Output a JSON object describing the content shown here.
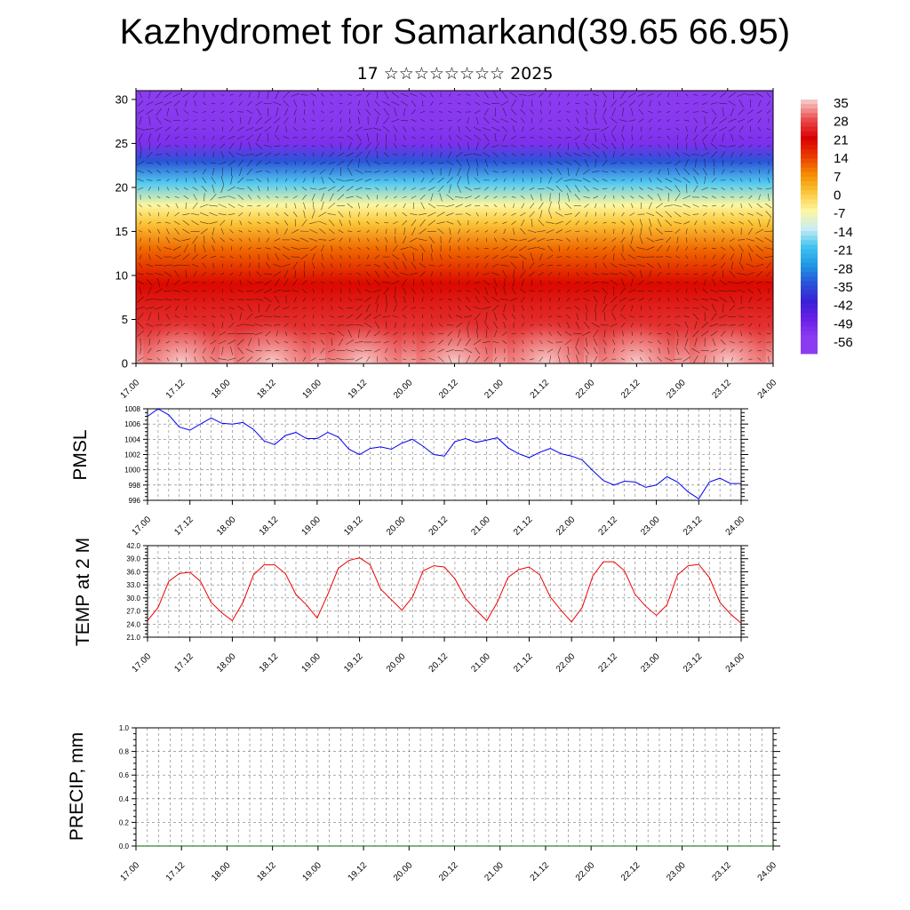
{
  "header": {
    "title": "Kazhydromet for Samarkand(39.65 66.95)",
    "subtitle": "17 ☆☆☆☆☆☆☆☆ 2025"
  },
  "chart_data": [
    {
      "type": "heatmap",
      "title": "Kazhydromet for Samarkand(39.65 66.95)",
      "subtitle": "17 ☆☆☆☆☆☆☆☆ 2025",
      "x_ticks": [
        "17.00",
        "17.12",
        "18.00",
        "18.12",
        "19.00",
        "19.12",
        "20.00",
        "20.12",
        "21.00",
        "21.12",
        "22.00",
        "22.12",
        "23.00",
        "23.12",
        "24.00"
      ],
      "y_ticks": [
        "0",
        "5",
        "10",
        "15",
        "20",
        "25",
        "30"
      ],
      "ylim": [
        0,
        31
      ],
      "colorbar_labels": [
        "35",
        "28",
        "21",
        "14",
        "7",
        "0",
        "-7",
        "-14",
        "-21",
        "-28",
        "-35",
        "-42",
        "-49",
        "-56"
      ],
      "colorbar_colors": [
        "#f6c2c2",
        "#ea4a4a",
        "#d80000",
        "#ea3a00",
        "#f48c00",
        "#fbc73a",
        "#fdf6a0",
        "#c9ecf4",
        "#3fc3ef",
        "#1e98e4",
        "#2a54d8",
        "#3a20d6",
        "#6a20e6",
        "#8c3cf0"
      ],
      "vertical_profile": [
        {
          "height": 0,
          "value": 33
        },
        {
          "height": 4,
          "value": 26
        },
        {
          "height": 9,
          "value": 20
        },
        {
          "height": 13,
          "value": 10
        },
        {
          "height": 16,
          "value": 0
        },
        {
          "height": 18,
          "value": -7
        },
        {
          "height": 20.5,
          "value": -20
        },
        {
          "height": 23,
          "value": -35
        },
        {
          "height": 25,
          "value": -53
        },
        {
          "height": 27,
          "value": -55
        },
        {
          "height": 31,
          "value": -57
        }
      ],
      "overlay": "wind vectors"
    },
    {
      "type": "line",
      "ylabel": "PMSL",
      "ylim": [
        996,
        1008
      ],
      "y_ticks": [
        "996",
        "998",
        "1000",
        "1002",
        "1004",
        "1006",
        "1008"
      ],
      "x_ticks": [
        "17.00",
        "17.12",
        "18.00",
        "18.12",
        "19.00",
        "19.12",
        "20.00",
        "20.12",
        "21.00",
        "21.12",
        "22.00",
        "22.12",
        "23.00",
        "23.12",
        "24.00"
      ],
      "color": "#0000ee",
      "series": [
        {
          "values": [
            1007.0,
            1008.0,
            1007.2,
            1005.6,
            1005.2,
            1006.0,
            1006.8,
            1006.1,
            1006.0,
            1006.2,
            1005.3,
            1003.8,
            1003.3,
            1004.5,
            1004.9,
            1004.1,
            1004.1,
            1004.9,
            1004.3,
            1002.7,
            1002.0,
            1002.8,
            1003.0,
            1002.7,
            1003.5,
            1004.0,
            1003.1,
            1002.0,
            1001.8,
            1003.7,
            1004.1,
            1003.6,
            1003.9,
            1004.2,
            1002.9,
            1002.1,
            1001.6,
            1002.3,
            1002.8,
            1002.1,
            1001.8,
            1001.3,
            999.9,
            998.6,
            998.0,
            998.5,
            998.4,
            997.7,
            998.0,
            999.1,
            998.4,
            997.1,
            996.2,
            998.4,
            998.9,
            998.2,
            998.2
          ]
        }
      ]
    },
    {
      "type": "line",
      "ylabel": "TEMP at 2 M",
      "ylim": [
        21.0,
        42.0
      ],
      "y_ticks": [
        "21.0",
        "24.0",
        "27.0",
        "30.0",
        "33.0",
        "36.0",
        "39.0",
        "42.0"
      ],
      "x_ticks": [
        "17.00",
        "17.12",
        "18.00",
        "18.12",
        "19.00",
        "19.12",
        "20.00",
        "20.12",
        "21.00",
        "21.12",
        "22.00",
        "22.12",
        "23.00",
        "23.12",
        "24.00"
      ],
      "color": "#ee0000",
      "series": [
        {
          "values": [
            24.8,
            27.8,
            33.8,
            35.6,
            35.9,
            33.8,
            29.0,
            26.6,
            24.8,
            29.0,
            35.3,
            37.6,
            37.6,
            35.6,
            30.8,
            28.4,
            25.4,
            30.8,
            36.8,
            38.6,
            39.2,
            37.6,
            32.0,
            29.6,
            27.2,
            30.2,
            36.2,
            37.4,
            37.1,
            34.4,
            29.9,
            27.2,
            24.8,
            29.0,
            34.7,
            36.5,
            37.1,
            35.3,
            30.2,
            27.2,
            24.5,
            27.8,
            35.0,
            38.3,
            38.3,
            36.2,
            30.8,
            28.1,
            26.0,
            28.4,
            35.3,
            37.4,
            37.7,
            34.7,
            29.0,
            26.3,
            24.2
          ]
        }
      ]
    },
    {
      "type": "line",
      "ylabel": "PRECIP, mm",
      "ylim": [
        0.0,
        1.0
      ],
      "y_ticks": [
        "0.0",
        "0.2",
        "0.4",
        "0.6",
        "0.8",
        "1.0"
      ],
      "x_ticks": [
        "17.00",
        "17.12",
        "18.00",
        "18.12",
        "19.00",
        "19.12",
        "20.00",
        "20.12",
        "21.00",
        "21.12",
        "22.00",
        "22.12",
        "23.00",
        "23.12",
        "24.00"
      ],
      "color": "#006400",
      "series": [
        {
          "values": [
            0,
            0,
            0,
            0,
            0,
            0,
            0,
            0,
            0,
            0,
            0,
            0,
            0,
            0,
            0,
            0,
            0,
            0,
            0,
            0,
            0,
            0,
            0,
            0,
            0,
            0,
            0,
            0,
            0,
            0,
            0,
            0,
            0,
            0,
            0,
            0,
            0,
            0,
            0,
            0,
            0,
            0,
            0,
            0,
            0,
            0,
            0,
            0,
            0,
            0,
            0,
            0,
            0,
            0,
            0,
            0,
            0
          ]
        }
      ]
    }
  ]
}
